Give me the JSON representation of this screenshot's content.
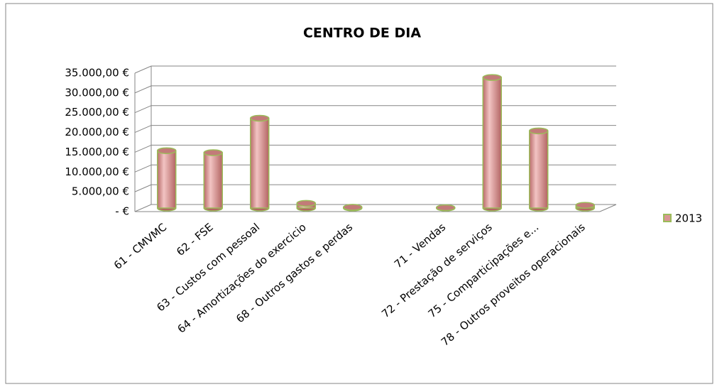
{
  "chart_data": {
    "type": "bar3d",
    "title": "CENTRO DE DIA",
    "categories": [
      "61 - CMVMC",
      "62 - FSE",
      "63 - Custos com pessoal",
      "64 - Amortizações do exercicio",
      "68 - Outros gastos e perdas",
      null,
      "71 - Vendas",
      "72 - Prestação de serviços",
      "75 - Comparticipações e...",
      "78 - Outros proveitos operacionais"
    ],
    "series": [
      {
        "name": "2013",
        "color": "#d99694",
        "values": [
          14500,
          14000,
          22700,
          1200,
          200,
          null,
          100,
          33000,
          19500,
          700
        ]
      }
    ],
    "ylim": [
      0,
      35000
    ],
    "yticks": [
      {
        "value": 0,
        "label": "-  €"
      },
      {
        "value": 5000,
        "label": "5.000,00 €"
      },
      {
        "value": 10000,
        "label": "10.000,00 €"
      },
      {
        "value": 15000,
        "label": "15.000,00 €"
      },
      {
        "value": 20000,
        "label": "20.000,00 €"
      },
      {
        "value": 25000,
        "label": "25.000,00 €"
      },
      {
        "value": 30000,
        "label": "30.000,00 €"
      },
      {
        "value": 35000,
        "label": "35.000,00 €"
      }
    ],
    "grid": true,
    "legend": "right"
  }
}
